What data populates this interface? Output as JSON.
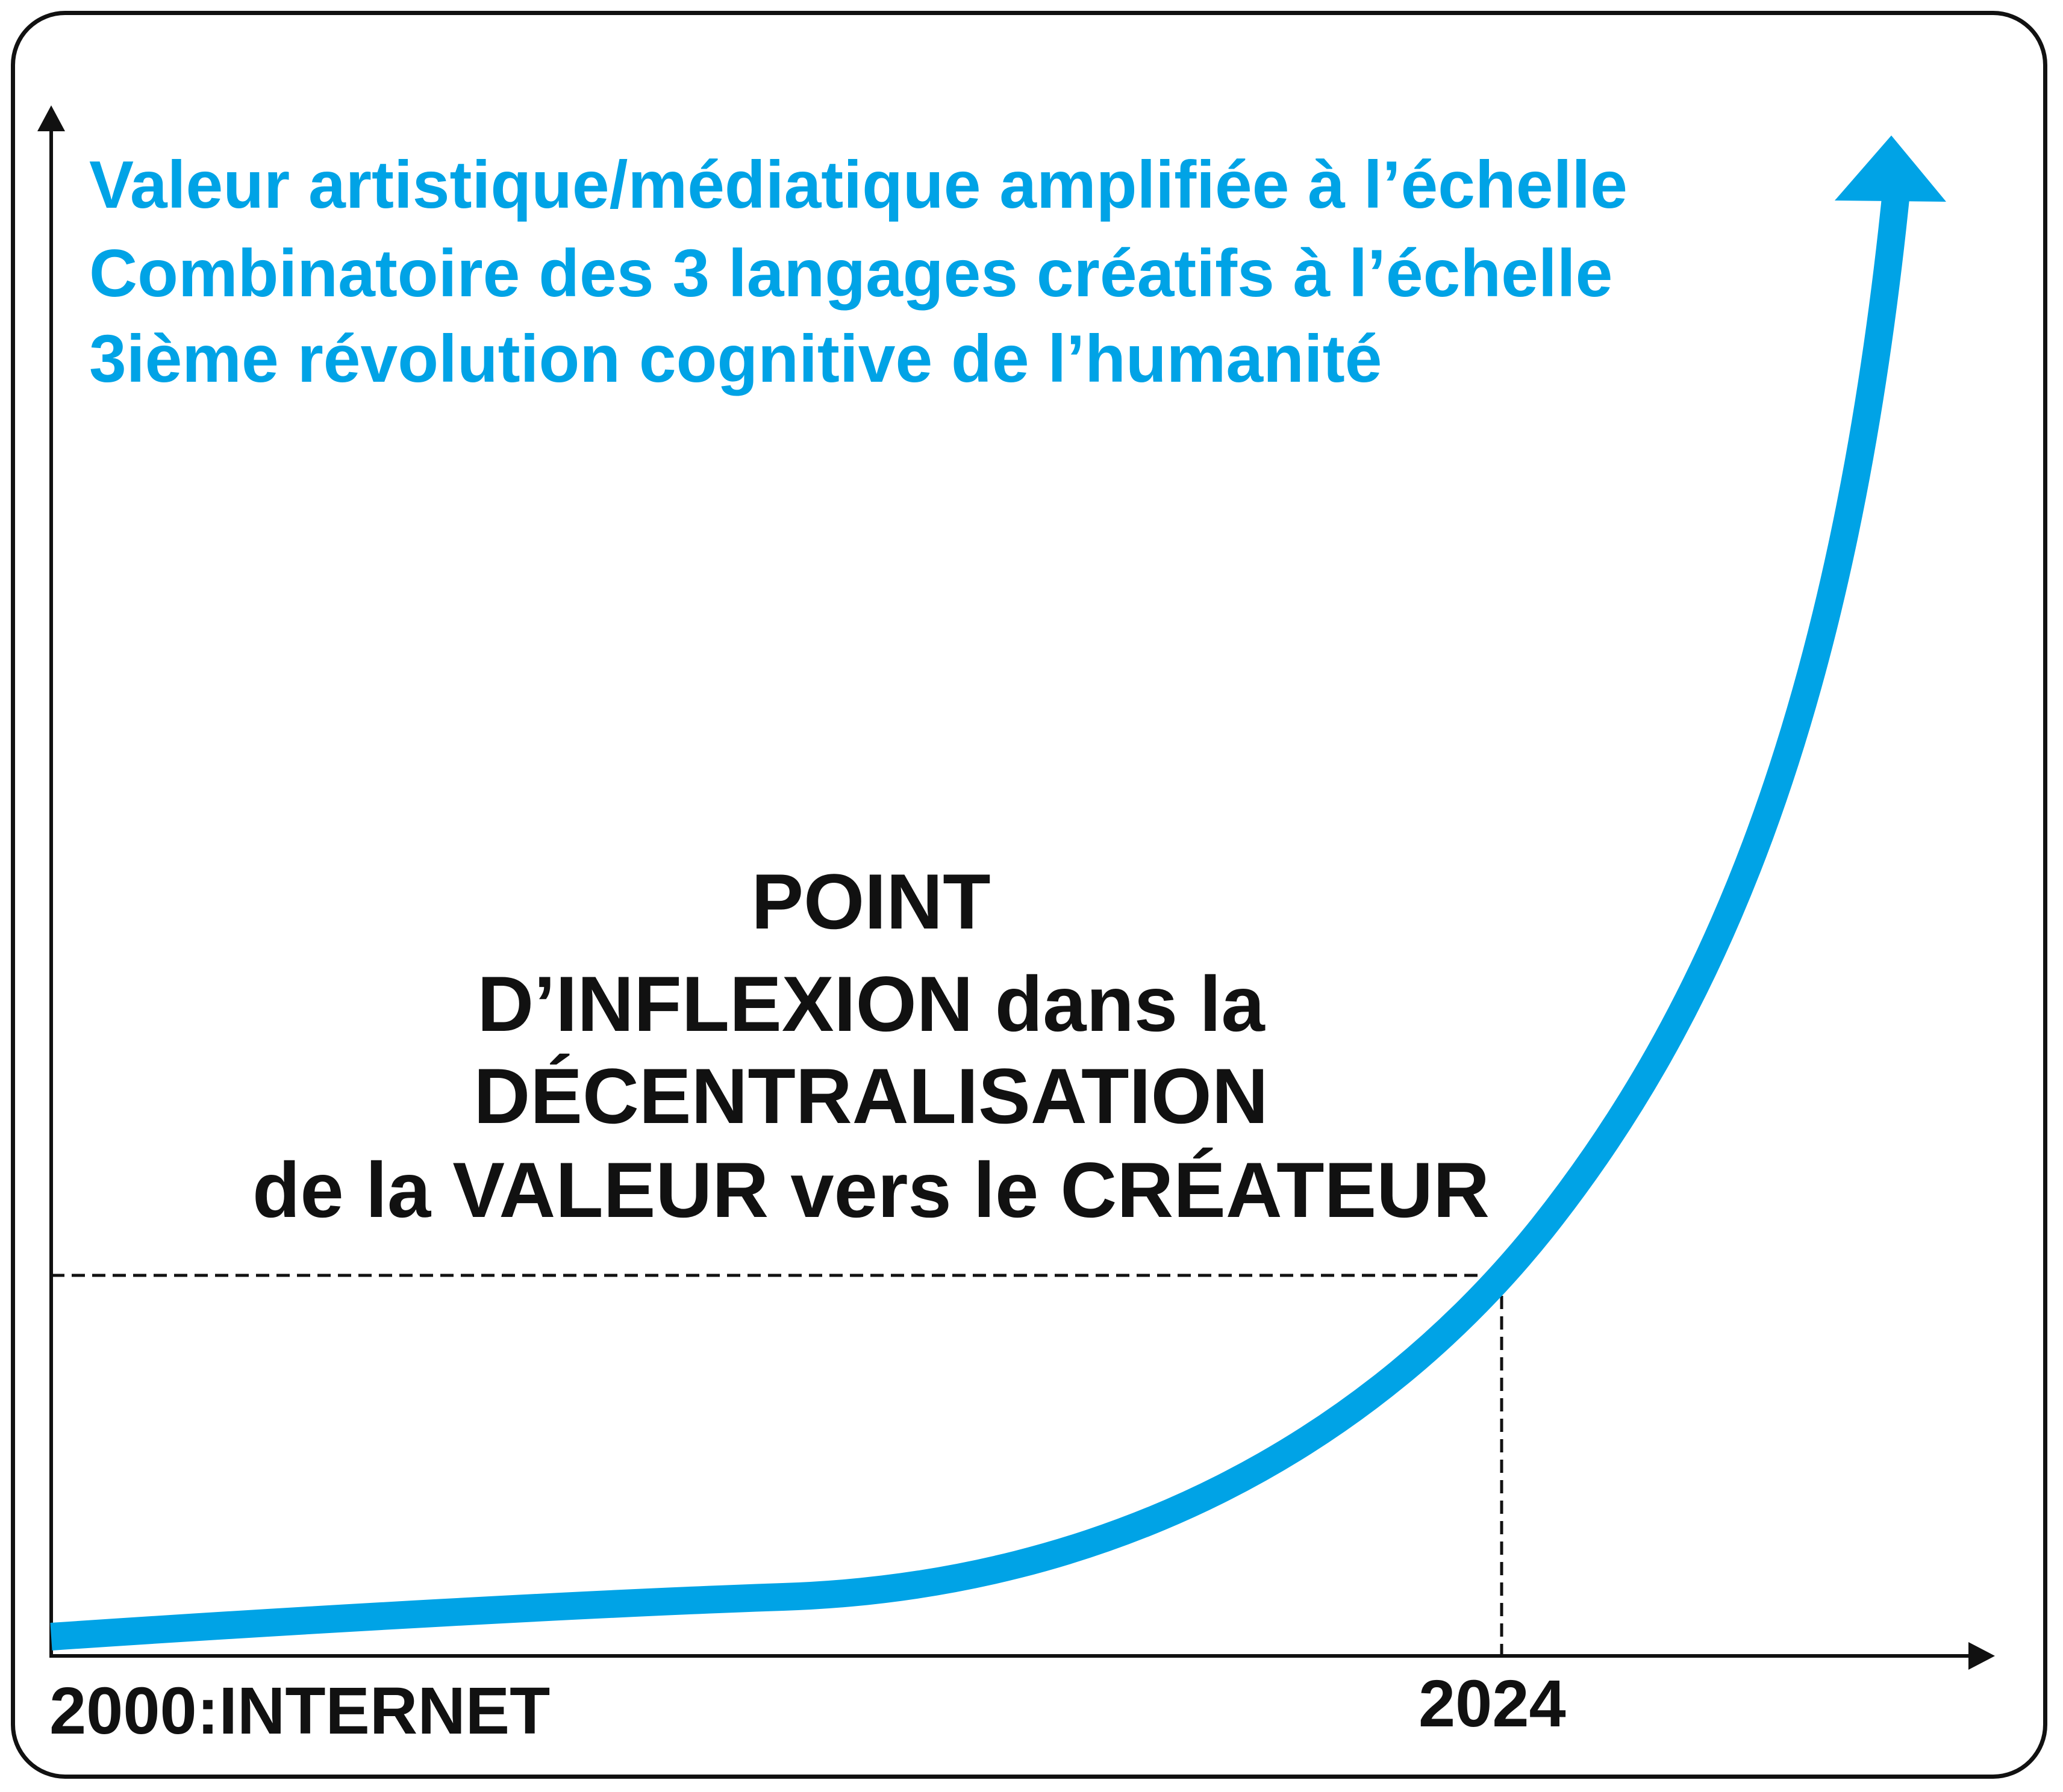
{
  "colors": {
    "accent": "#00A3E6",
    "text": "#111111",
    "frame": "#111111"
  },
  "headline_lines": [
    "Valeur artistique/médiatique amplifiée à l’échelle",
    "Combinatoire des 3 langages créatifs à l’échelle",
    "3ième révolution cognitive de l’humanité"
  ],
  "inflexion_lines": [
    "POINT",
    "D’INFLEXION dans la",
    "DÉCENTRALISATION",
    "de la VALEUR vers le CRÉATEUR"
  ],
  "x_axis": {
    "start_label": "2000:INTERNET",
    "marker_label": "2024"
  }
}
